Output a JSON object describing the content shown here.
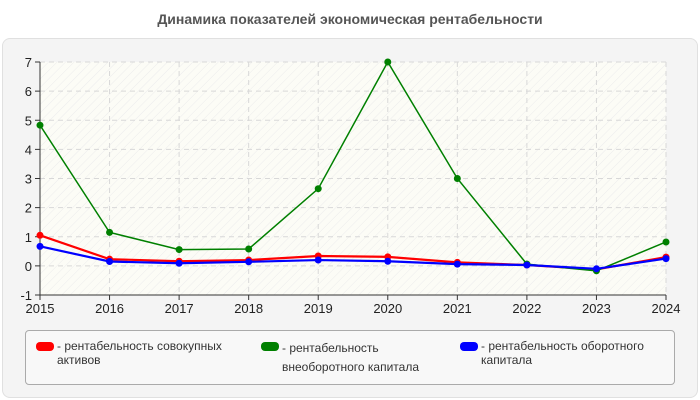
{
  "title": "Динамика показателей экономическая рентабельности",
  "legend": [
    {
      "label": "- рентабельность совокупных\nактивов",
      "color": "#ff0000"
    },
    {
      "label": "- рентабельность\nвнеоборотного капитала",
      "color": "#008000"
    },
    {
      "label": "- рентабельность оборотного\nкапитала",
      "color": "#0000ff"
    }
  ],
  "chart_data": {
    "type": "line",
    "title": "Динамика показателей экономическая рентабельности",
    "xlabel": "",
    "ylabel": "",
    "x": [
      "2015",
      "2016",
      "2017",
      "2018",
      "2019",
      "2020",
      "2021",
      "2022",
      "2023",
      "2024"
    ],
    "ylim": [
      -1,
      7
    ],
    "yticks": [
      "-1",
      "0",
      "1",
      "2",
      "3",
      "4",
      "5",
      "6",
      "7"
    ],
    "grid": true,
    "legend_position": "bottom",
    "series": [
      {
        "name": "рентабельность совокупных активов",
        "color": "#ff0000",
        "values": [
          1.05,
          0.23,
          0.16,
          0.2,
          0.34,
          0.31,
          0.12,
          0.03,
          -0.12,
          0.3
        ]
      },
      {
        "name": "рентабельность внеоборотного капитала",
        "color": "#008000",
        "values": [
          4.83,
          1.15,
          0.56,
          0.58,
          2.65,
          7.0,
          3.0,
          0.06,
          -0.17,
          0.82
        ]
      },
      {
        "name": "рентабельность оборотного капитала",
        "color": "#0000ff",
        "values": [
          0.67,
          0.15,
          0.09,
          0.14,
          0.2,
          0.16,
          0.06,
          0.03,
          -0.1,
          0.25
        ]
      }
    ]
  }
}
